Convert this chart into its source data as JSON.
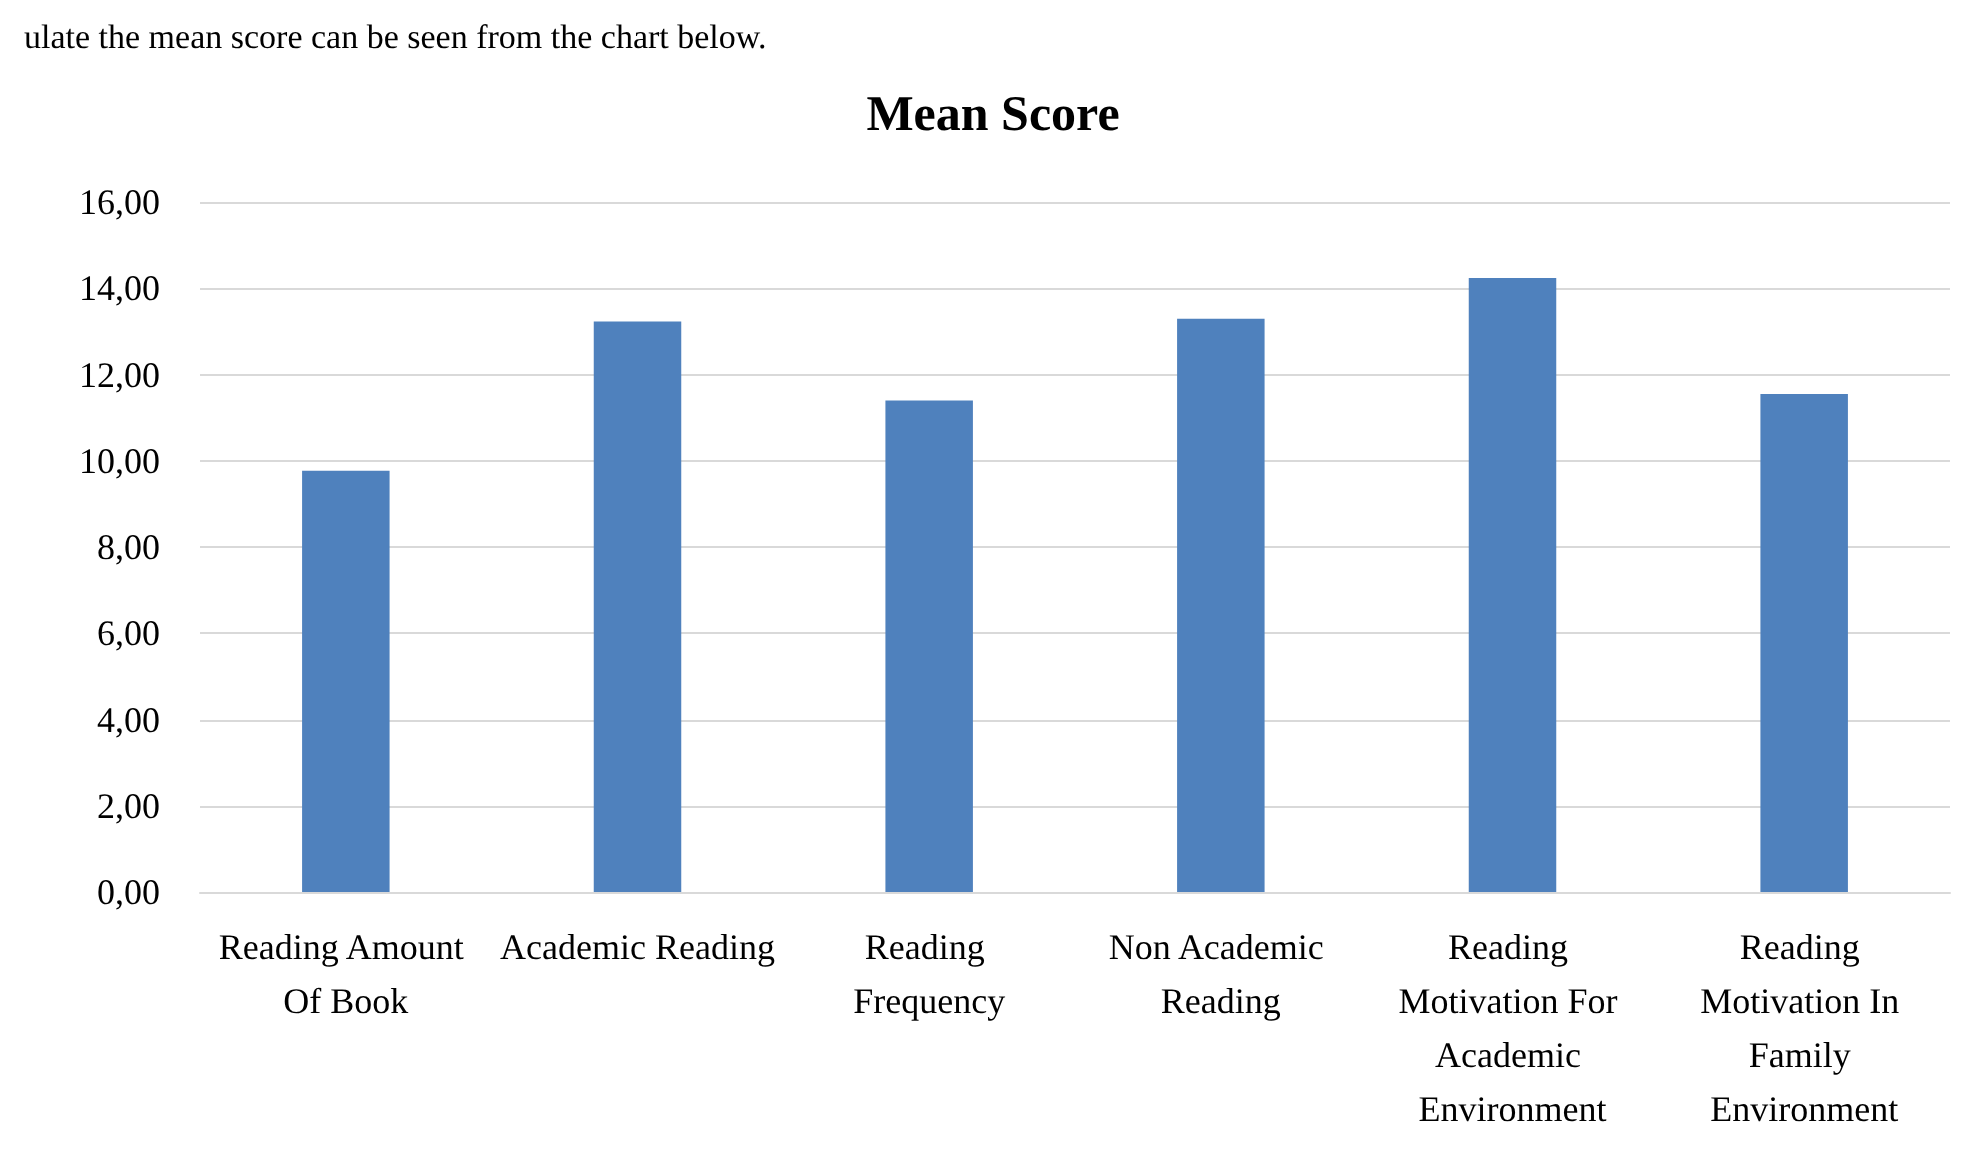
{
  "chart_data": {
    "type": "bar",
    "title": "Mean Score",
    "annotations": [
      "ulate the mean score can be seen from the chart below."
    ],
    "categories": [
      "Reading Amount Of Book",
      "Academic Reading",
      "Reading Frequency",
      "Non Academic Reading",
      "Reading Motivation For Academic Environment",
      "Reading Motivation In Family Environment"
    ],
    "values": [
      9.77,
      13.23,
      11.4,
      13.29,
      14.24,
      11.55
    ],
    "color": "#4f81bd",
    "ylim": [
      0,
      16
    ],
    "yticks": [
      {
        "value": 0,
        "label": "0,00"
      },
      {
        "value": 2,
        "label": "2,00"
      },
      {
        "value": 4,
        "label": "4,00"
      },
      {
        "value": 6,
        "label": "6,00"
      },
      {
        "value": 8,
        "label": "8,00"
      },
      {
        "value": 10,
        "label": "10,00"
      },
      {
        "value": 12,
        "label": "12,00"
      },
      {
        "value": 14,
        "label": "14,00"
      },
      {
        "value": 16,
        "label": "16,00"
      }
    ],
    "grid": "y"
  }
}
